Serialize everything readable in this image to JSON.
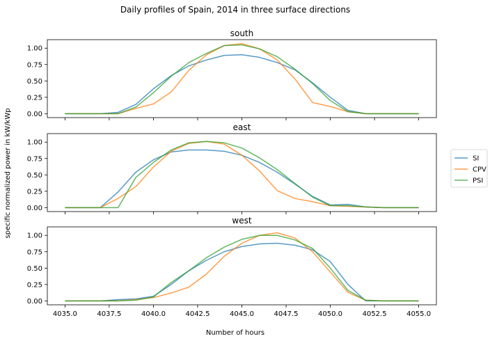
{
  "suptitle": "Daily profiles of Spain, 2014 in three surface directions",
  "xlabel": "Number of hours",
  "ylabel": "specific normalized power in kW/kWp",
  "legend": {
    "placement": "right",
    "entries": [
      {
        "name": "SI",
        "color": "#1f77b4"
      },
      {
        "name": "CPV",
        "color": "#ff7f0e"
      },
      {
        "name": "PSI",
        "color": "#2ca02c"
      }
    ]
  },
  "chart_data": [
    {
      "type": "line",
      "title": "south",
      "xlim": [
        4034,
        4056
      ],
      "ylim": [
        -0.06,
        1.13
      ],
      "xticks": [
        "4035.0",
        "4037.5",
        "4040.0",
        "4042.5",
        "4045.0",
        "4047.5",
        "4050.0",
        "4052.5",
        "4055.0"
      ],
      "yticks": [
        "0.00",
        "0.25",
        "0.50",
        "0.75",
        "1.00"
      ],
      "x": [
        4035,
        4036,
        4037,
        4038,
        4039,
        4040,
        4041,
        4042,
        4043,
        4044,
        4045,
        4046,
        4047,
        4048,
        4049,
        4050,
        4051,
        4052,
        4053,
        4054,
        4055
      ],
      "series": [
        {
          "name": "SI",
          "values": [
            0.0,
            0.0,
            0.0,
            0.02,
            0.14,
            0.38,
            0.58,
            0.73,
            0.82,
            0.89,
            0.9,
            0.86,
            0.78,
            0.67,
            0.47,
            0.25,
            0.05,
            0.0,
            0.0,
            0.0,
            0.0
          ]
        },
        {
          "name": "CPV",
          "values": [
            0.0,
            0.0,
            0.0,
            0.0,
            0.08,
            0.15,
            0.33,
            0.66,
            0.9,
            1.04,
            1.07,
            0.99,
            0.82,
            0.53,
            0.17,
            0.11,
            0.03,
            0.0,
            0.0,
            0.0,
            0.0
          ]
        },
        {
          "name": "PSI",
          "values": [
            0.0,
            0.0,
            0.0,
            0.0,
            0.1,
            0.32,
            0.57,
            0.78,
            0.92,
            1.04,
            1.05,
            0.99,
            0.87,
            0.68,
            0.46,
            0.2,
            0.03,
            0.0,
            0.0,
            0.0,
            0.0
          ]
        }
      ]
    },
    {
      "type": "line",
      "title": "east",
      "xlim": [
        4034,
        4056
      ],
      "ylim": [
        -0.06,
        1.13
      ],
      "xticks": [
        "4035.0",
        "4037.5",
        "4040.0",
        "4042.5",
        "4045.0",
        "4047.5",
        "4050.0",
        "4052.5",
        "4055.0"
      ],
      "yticks": [
        "0.00",
        "0.25",
        "0.50",
        "0.75",
        "1.00"
      ],
      "x": [
        4035,
        4036,
        4037,
        4038,
        4039,
        4040,
        4041,
        4042,
        4043,
        4044,
        4045,
        4046,
        4047,
        4048,
        4049,
        4050,
        4051,
        4052,
        4053,
        4054,
        4055
      ],
      "series": [
        {
          "name": "SI",
          "values": [
            0.0,
            0.0,
            0.0,
            0.24,
            0.54,
            0.73,
            0.85,
            0.88,
            0.88,
            0.86,
            0.8,
            0.69,
            0.54,
            0.36,
            0.17,
            0.04,
            0.05,
            0.01,
            0.0,
            0.0,
            0.0
          ]
        },
        {
          "name": "CPV",
          "values": [
            0.0,
            0.0,
            0.0,
            0.14,
            0.32,
            0.62,
            0.86,
            0.98,
            1.01,
            0.97,
            0.8,
            0.56,
            0.26,
            0.14,
            0.09,
            0.03,
            0.02,
            0.01,
            0.0,
            0.0,
            0.0
          ]
        },
        {
          "name": "PSI",
          "values": [
            0.0,
            0.0,
            0.0,
            0.0,
            0.46,
            0.69,
            0.88,
            0.99,
            1.01,
            0.99,
            0.91,
            0.76,
            0.58,
            0.37,
            0.16,
            0.03,
            0.03,
            0.01,
            0.0,
            0.0,
            0.0
          ]
        }
      ]
    },
    {
      "type": "line",
      "title": "west",
      "xlim": [
        4034,
        4056
      ],
      "ylim": [
        -0.06,
        1.13
      ],
      "xticks": [
        "4035.0",
        "4037.5",
        "4040.0",
        "4042.5",
        "4045.0",
        "4047.5",
        "4050.0",
        "4052.5",
        "4055.0"
      ],
      "yticks": [
        "0.00",
        "0.25",
        "0.50",
        "0.75",
        "1.00"
      ],
      "x": [
        4035,
        4036,
        4037,
        4038,
        4039,
        4040,
        4041,
        4042,
        4043,
        4044,
        4045,
        4046,
        4047,
        4048,
        4049,
        4050,
        4051,
        4052,
        4053,
        4054,
        4055
      ],
      "series": [
        {
          "name": "SI",
          "values": [
            0.0,
            0.0,
            0.0,
            0.02,
            0.03,
            0.07,
            0.25,
            0.46,
            0.62,
            0.75,
            0.83,
            0.87,
            0.88,
            0.85,
            0.78,
            0.6,
            0.25,
            0.0,
            0.0,
            0.0,
            0.0
          ]
        },
        {
          "name": "CPV",
          "values": [
            0.0,
            0.0,
            0.0,
            0.0,
            0.02,
            0.05,
            0.12,
            0.21,
            0.41,
            0.68,
            0.88,
            1.0,
            1.04,
            0.96,
            0.75,
            0.44,
            0.13,
            0.01,
            0.0,
            0.0,
            0.0
          ]
        },
        {
          "name": "PSI",
          "values": [
            0.0,
            0.0,
            0.0,
            0.0,
            0.01,
            0.06,
            0.28,
            0.46,
            0.66,
            0.82,
            0.94,
            1.0,
            1.0,
            0.93,
            0.8,
            0.5,
            0.16,
            0.01,
            0.0,
            0.0,
            0.0
          ]
        }
      ]
    }
  ]
}
